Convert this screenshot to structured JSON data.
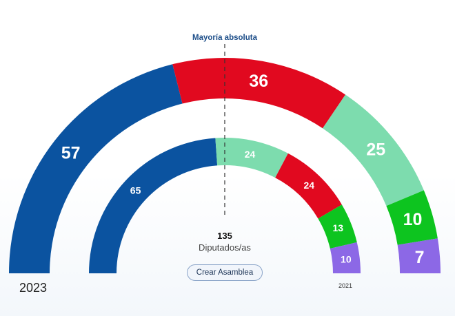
{
  "majority_label": "Mayoría absoluta",
  "total_seats": "135",
  "total_label": "Diputados/as",
  "create_button": "Crear Asamblea",
  "year_outer": "2023",
  "year_inner": "2021",
  "chart_data": {
    "type": "parliament-donut",
    "majority_seats": 68,
    "rings": [
      {
        "label": "2023",
        "total": 135,
        "segments": [
          {
            "value": 57,
            "color": "#0b53a0"
          },
          {
            "value": 36,
            "color": "#e1091f"
          },
          {
            "value": 25,
            "color": "#7ddcae"
          },
          {
            "value": 10,
            "color": "#0dc41f"
          },
          {
            "value": 7,
            "color": "#8c68e6"
          }
        ]
      },
      {
        "label": "2021",
        "total": 136,
        "segments": [
          {
            "value": 65,
            "color": "#0b53a0"
          },
          {
            "value": 24,
            "color": "#7ddcae"
          },
          {
            "value": 24,
            "color": "#e1091f"
          },
          {
            "value": 13,
            "color": "#0dc41f"
          },
          {
            "value": 10,
            "color": "#8c68e6"
          }
        ]
      }
    ]
  }
}
